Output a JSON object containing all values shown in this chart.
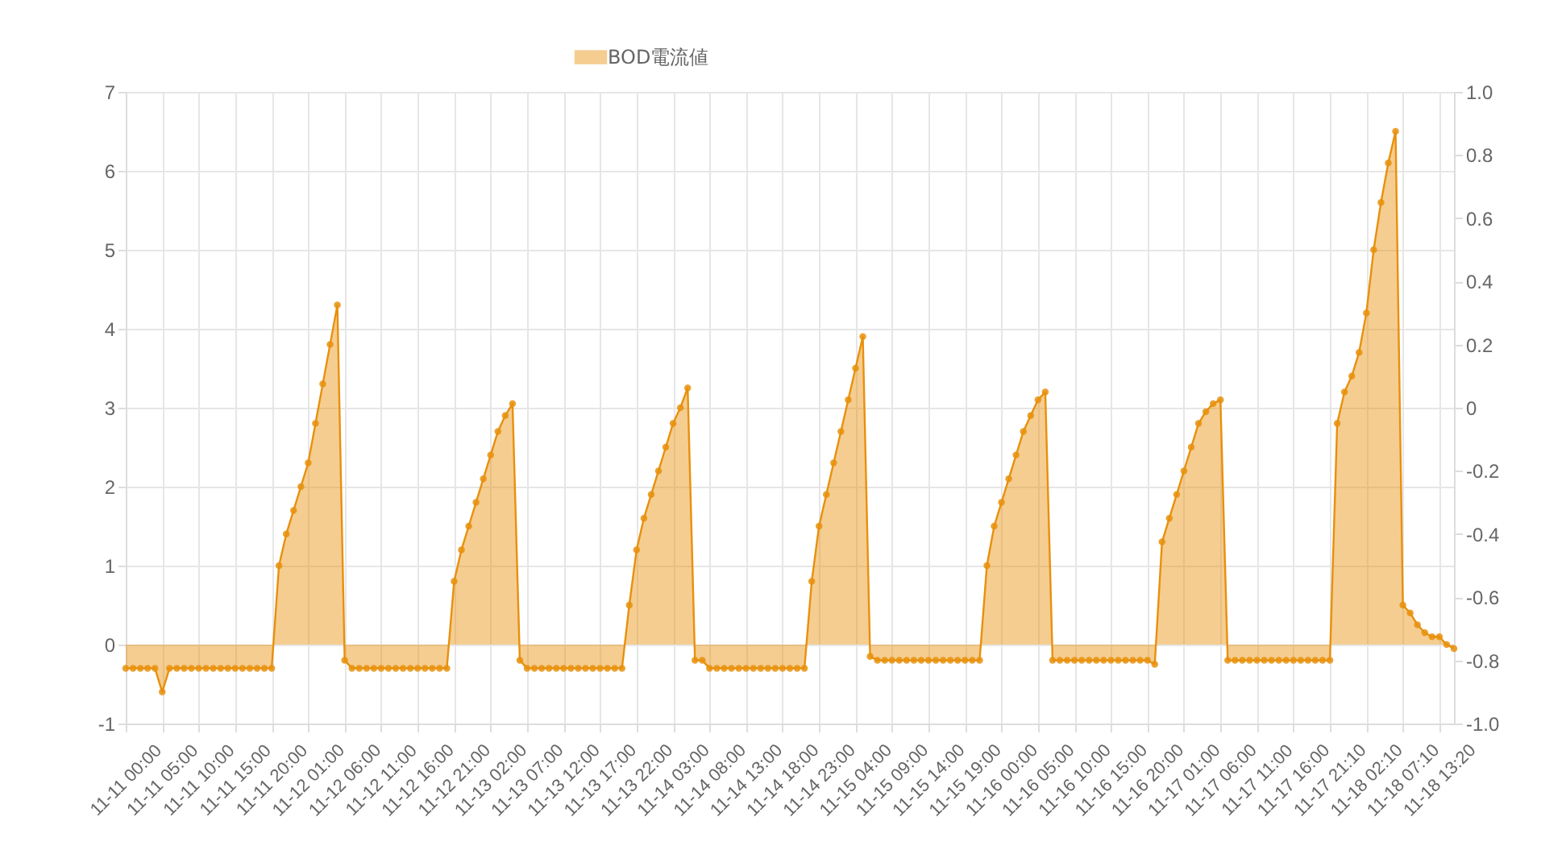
{
  "chart_data": {
    "type": "area",
    "categories": [
      "11-11 00:00",
      null,
      null,
      null,
      null,
      "11-11 05:00",
      null,
      null,
      null,
      null,
      "11-11 10:00",
      null,
      null,
      null,
      null,
      "11-11 15:00",
      null,
      null,
      null,
      null,
      "11-11 20:00",
      null,
      null,
      null,
      null,
      "11-12 01:00",
      null,
      null,
      null,
      null,
      "11-12 06:00",
      null,
      null,
      null,
      null,
      "11-12 11:00",
      null,
      null,
      null,
      null,
      "11-12 16:00",
      null,
      null,
      null,
      null,
      "11-12 21:00",
      null,
      null,
      null,
      null,
      "11-13 02:00",
      null,
      null,
      null,
      null,
      "11-13 07:00",
      null,
      null,
      null,
      null,
      "11-13 12:00",
      null,
      null,
      null,
      null,
      "11-13 17:00",
      null,
      null,
      null,
      null,
      "11-13 22:00",
      null,
      null,
      null,
      null,
      "11-14 03:00",
      null,
      null,
      null,
      null,
      "11-14 08:00",
      null,
      null,
      null,
      null,
      "11-14 13:00",
      null,
      null,
      null,
      null,
      "11-14 18:00",
      null,
      null,
      null,
      null,
      "11-14 23:00",
      null,
      null,
      null,
      null,
      "11-15 04:00",
      null,
      null,
      null,
      null,
      "11-15 09:00",
      null,
      null,
      null,
      null,
      "11-15 14:00",
      null,
      null,
      null,
      null,
      "11-15 19:00",
      null,
      null,
      null,
      null,
      "11-16 00:00",
      null,
      null,
      null,
      null,
      "11-16 05:00",
      null,
      null,
      null,
      null,
      "11-16 10:00",
      null,
      null,
      null,
      null,
      "11-16 15:00",
      null,
      null,
      null,
      null,
      "11-16 20:00",
      null,
      null,
      null,
      null,
      "11-17 01:00",
      null,
      null,
      null,
      null,
      "11-17 06:00",
      null,
      null,
      null,
      null,
      "11-17 11:00",
      null,
      null,
      null,
      null,
      "11-17 16:00",
      null,
      null,
      null,
      null,
      "11-17 21:10",
      null,
      null,
      null,
      null,
      "11-18 02:10",
      null,
      null,
      null,
      null,
      "11-18 07:10",
      null,
      null,
      null,
      null,
      "11-18 13:20",
      null,
      null
    ],
    "series": [
      {
        "name": "BOD電流値",
        "color": "#e8900c",
        "values": [
          -0.3,
          -0.3,
          -0.3,
          -0.3,
          -0.3,
          -0.6,
          -0.3,
          -0.3,
          -0.3,
          -0.3,
          -0.3,
          -0.3,
          -0.3,
          -0.3,
          -0.3,
          -0.3,
          -0.3,
          -0.3,
          -0.3,
          -0.3,
          -0.3,
          1.0,
          1.4,
          1.7,
          2.0,
          2.3,
          2.8,
          3.3,
          3.8,
          4.3,
          -0.2,
          -0.3,
          -0.3,
          -0.3,
          -0.3,
          -0.3,
          -0.3,
          -0.3,
          -0.3,
          -0.3,
          -0.3,
          -0.3,
          -0.3,
          -0.3,
          -0.3,
          0.8,
          1.2,
          1.5,
          1.8,
          2.1,
          2.4,
          2.7,
          2.9,
          3.05,
          -0.2,
          -0.3,
          -0.3,
          -0.3,
          -0.3,
          -0.3,
          -0.3,
          -0.3,
          -0.3,
          -0.3,
          -0.3,
          -0.3,
          -0.3,
          -0.3,
          -0.3,
          0.5,
          1.2,
          1.6,
          1.9,
          2.2,
          2.5,
          2.8,
          3.0,
          3.25,
          -0.2,
          -0.2,
          -0.3,
          -0.3,
          -0.3,
          -0.3,
          -0.3,
          -0.3,
          -0.3,
          -0.3,
          -0.3,
          -0.3,
          -0.3,
          -0.3,
          -0.3,
          -0.3,
          0.8,
          1.5,
          1.9,
          2.3,
          2.7,
          3.1,
          3.5,
          3.9,
          -0.15,
          -0.2,
          -0.2,
          -0.2,
          -0.2,
          -0.2,
          -0.2,
          -0.2,
          -0.2,
          -0.2,
          -0.2,
          -0.2,
          -0.2,
          -0.2,
          -0.2,
          -0.2,
          1.0,
          1.5,
          1.8,
          2.1,
          2.4,
          2.7,
          2.9,
          3.1,
          3.2,
          -0.2,
          -0.2,
          -0.2,
          -0.2,
          -0.2,
          -0.2,
          -0.2,
          -0.2,
          -0.2,
          -0.2,
          -0.2,
          -0.2,
          -0.2,
          -0.2,
          -0.25,
          1.3,
          1.6,
          1.9,
          2.2,
          2.5,
          2.8,
          2.95,
          3.05,
          3.1,
          -0.2,
          -0.2,
          -0.2,
          -0.2,
          -0.2,
          -0.2,
          -0.2,
          -0.2,
          -0.2,
          -0.2,
          -0.2,
          -0.2,
          -0.2,
          -0.2,
          -0.2,
          2.8,
          3.2,
          3.4,
          3.7,
          4.2,
          5.0,
          5.6,
          6.1,
          6.5,
          0.5,
          0.4,
          0.25,
          0.15,
          0.1,
          0.1,
          0.0,
          -0.05
        ]
      }
    ],
    "ylim": [
      -1,
      7
    ],
    "yticks": [
      -1,
      0,
      1,
      2,
      3,
      4,
      5,
      6,
      7
    ],
    "y2lim": [
      -1,
      1
    ],
    "y2ticks": [
      {
        "value": -1,
        "label": "-1.0"
      },
      -0.8,
      -0.6,
      -0.4,
      -0.2,
      0,
      0.2,
      0.4,
      0.6,
      0.8,
      {
        "value": 1,
        "label": "1.0"
      }
    ],
    "grid": true,
    "legend": "top",
    "marker": "circle"
  }
}
